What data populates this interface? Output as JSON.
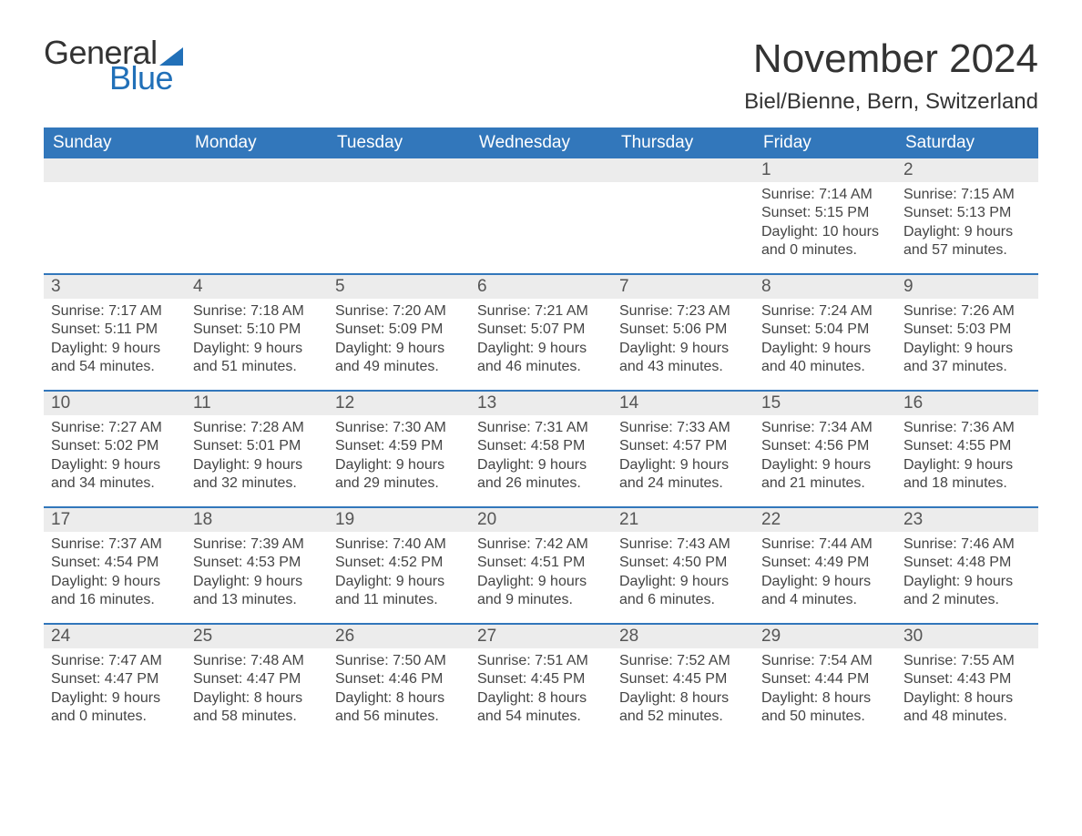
{
  "brand": {
    "word1": "General",
    "word2": "Blue",
    "accent_color": "#2170b8"
  },
  "title": "November 2024",
  "subtitle": "Biel/Bienne, Bern, Switzerland",
  "colors": {
    "header_bg": "#3277bb",
    "header_text": "#ffffff",
    "daynum_bg": "#ececec",
    "row_border": "#3277bb",
    "body_text": "#444444",
    "page_bg": "#ffffff"
  },
  "weekday_labels": [
    "Sunday",
    "Monday",
    "Tuesday",
    "Wednesday",
    "Thursday",
    "Friday",
    "Saturday"
  ],
  "weeks": [
    [
      {
        "day": "",
        "sunrise": "",
        "sunset": "",
        "daylight1": "",
        "daylight2": ""
      },
      {
        "day": "",
        "sunrise": "",
        "sunset": "",
        "daylight1": "",
        "daylight2": ""
      },
      {
        "day": "",
        "sunrise": "",
        "sunset": "",
        "daylight1": "",
        "daylight2": ""
      },
      {
        "day": "",
        "sunrise": "",
        "sunset": "",
        "daylight1": "",
        "daylight2": ""
      },
      {
        "day": "",
        "sunrise": "",
        "sunset": "",
        "daylight1": "",
        "daylight2": ""
      },
      {
        "day": "1",
        "sunrise": "Sunrise: 7:14 AM",
        "sunset": "Sunset: 5:15 PM",
        "daylight1": "Daylight: 10 hours",
        "daylight2": "and 0 minutes."
      },
      {
        "day": "2",
        "sunrise": "Sunrise: 7:15 AM",
        "sunset": "Sunset: 5:13 PM",
        "daylight1": "Daylight: 9 hours",
        "daylight2": "and 57 minutes."
      }
    ],
    [
      {
        "day": "3",
        "sunrise": "Sunrise: 7:17 AM",
        "sunset": "Sunset: 5:11 PM",
        "daylight1": "Daylight: 9 hours",
        "daylight2": "and 54 minutes."
      },
      {
        "day": "4",
        "sunrise": "Sunrise: 7:18 AM",
        "sunset": "Sunset: 5:10 PM",
        "daylight1": "Daylight: 9 hours",
        "daylight2": "and 51 minutes."
      },
      {
        "day": "5",
        "sunrise": "Sunrise: 7:20 AM",
        "sunset": "Sunset: 5:09 PM",
        "daylight1": "Daylight: 9 hours",
        "daylight2": "and 49 minutes."
      },
      {
        "day": "6",
        "sunrise": "Sunrise: 7:21 AM",
        "sunset": "Sunset: 5:07 PM",
        "daylight1": "Daylight: 9 hours",
        "daylight2": "and 46 minutes."
      },
      {
        "day": "7",
        "sunrise": "Sunrise: 7:23 AM",
        "sunset": "Sunset: 5:06 PM",
        "daylight1": "Daylight: 9 hours",
        "daylight2": "and 43 minutes."
      },
      {
        "day": "8",
        "sunrise": "Sunrise: 7:24 AM",
        "sunset": "Sunset: 5:04 PM",
        "daylight1": "Daylight: 9 hours",
        "daylight2": "and 40 minutes."
      },
      {
        "day": "9",
        "sunrise": "Sunrise: 7:26 AM",
        "sunset": "Sunset: 5:03 PM",
        "daylight1": "Daylight: 9 hours",
        "daylight2": "and 37 minutes."
      }
    ],
    [
      {
        "day": "10",
        "sunrise": "Sunrise: 7:27 AM",
        "sunset": "Sunset: 5:02 PM",
        "daylight1": "Daylight: 9 hours",
        "daylight2": "and 34 minutes."
      },
      {
        "day": "11",
        "sunrise": "Sunrise: 7:28 AM",
        "sunset": "Sunset: 5:01 PM",
        "daylight1": "Daylight: 9 hours",
        "daylight2": "and 32 minutes."
      },
      {
        "day": "12",
        "sunrise": "Sunrise: 7:30 AM",
        "sunset": "Sunset: 4:59 PM",
        "daylight1": "Daylight: 9 hours",
        "daylight2": "and 29 minutes."
      },
      {
        "day": "13",
        "sunrise": "Sunrise: 7:31 AM",
        "sunset": "Sunset: 4:58 PM",
        "daylight1": "Daylight: 9 hours",
        "daylight2": "and 26 minutes."
      },
      {
        "day": "14",
        "sunrise": "Sunrise: 7:33 AM",
        "sunset": "Sunset: 4:57 PM",
        "daylight1": "Daylight: 9 hours",
        "daylight2": "and 24 minutes."
      },
      {
        "day": "15",
        "sunrise": "Sunrise: 7:34 AM",
        "sunset": "Sunset: 4:56 PM",
        "daylight1": "Daylight: 9 hours",
        "daylight2": "and 21 minutes."
      },
      {
        "day": "16",
        "sunrise": "Sunrise: 7:36 AM",
        "sunset": "Sunset: 4:55 PM",
        "daylight1": "Daylight: 9 hours",
        "daylight2": "and 18 minutes."
      }
    ],
    [
      {
        "day": "17",
        "sunrise": "Sunrise: 7:37 AM",
        "sunset": "Sunset: 4:54 PM",
        "daylight1": "Daylight: 9 hours",
        "daylight2": "and 16 minutes."
      },
      {
        "day": "18",
        "sunrise": "Sunrise: 7:39 AM",
        "sunset": "Sunset: 4:53 PM",
        "daylight1": "Daylight: 9 hours",
        "daylight2": "and 13 minutes."
      },
      {
        "day": "19",
        "sunrise": "Sunrise: 7:40 AM",
        "sunset": "Sunset: 4:52 PM",
        "daylight1": "Daylight: 9 hours",
        "daylight2": "and 11 minutes."
      },
      {
        "day": "20",
        "sunrise": "Sunrise: 7:42 AM",
        "sunset": "Sunset: 4:51 PM",
        "daylight1": "Daylight: 9 hours",
        "daylight2": "and 9 minutes."
      },
      {
        "day": "21",
        "sunrise": "Sunrise: 7:43 AM",
        "sunset": "Sunset: 4:50 PM",
        "daylight1": "Daylight: 9 hours",
        "daylight2": "and 6 minutes."
      },
      {
        "day": "22",
        "sunrise": "Sunrise: 7:44 AM",
        "sunset": "Sunset: 4:49 PM",
        "daylight1": "Daylight: 9 hours",
        "daylight2": "and 4 minutes."
      },
      {
        "day": "23",
        "sunrise": "Sunrise: 7:46 AM",
        "sunset": "Sunset: 4:48 PM",
        "daylight1": "Daylight: 9 hours",
        "daylight2": "and 2 minutes."
      }
    ],
    [
      {
        "day": "24",
        "sunrise": "Sunrise: 7:47 AM",
        "sunset": "Sunset: 4:47 PM",
        "daylight1": "Daylight: 9 hours",
        "daylight2": "and 0 minutes."
      },
      {
        "day": "25",
        "sunrise": "Sunrise: 7:48 AM",
        "sunset": "Sunset: 4:47 PM",
        "daylight1": "Daylight: 8 hours",
        "daylight2": "and 58 minutes."
      },
      {
        "day": "26",
        "sunrise": "Sunrise: 7:50 AM",
        "sunset": "Sunset: 4:46 PM",
        "daylight1": "Daylight: 8 hours",
        "daylight2": "and 56 minutes."
      },
      {
        "day": "27",
        "sunrise": "Sunrise: 7:51 AM",
        "sunset": "Sunset: 4:45 PM",
        "daylight1": "Daylight: 8 hours",
        "daylight2": "and 54 minutes."
      },
      {
        "day": "28",
        "sunrise": "Sunrise: 7:52 AM",
        "sunset": "Sunset: 4:45 PM",
        "daylight1": "Daylight: 8 hours",
        "daylight2": "and 52 minutes."
      },
      {
        "day": "29",
        "sunrise": "Sunrise: 7:54 AM",
        "sunset": "Sunset: 4:44 PM",
        "daylight1": "Daylight: 8 hours",
        "daylight2": "and 50 minutes."
      },
      {
        "day": "30",
        "sunrise": "Sunrise: 7:55 AM",
        "sunset": "Sunset: 4:43 PM",
        "daylight1": "Daylight: 8 hours",
        "daylight2": "and 48 minutes."
      }
    ]
  ]
}
